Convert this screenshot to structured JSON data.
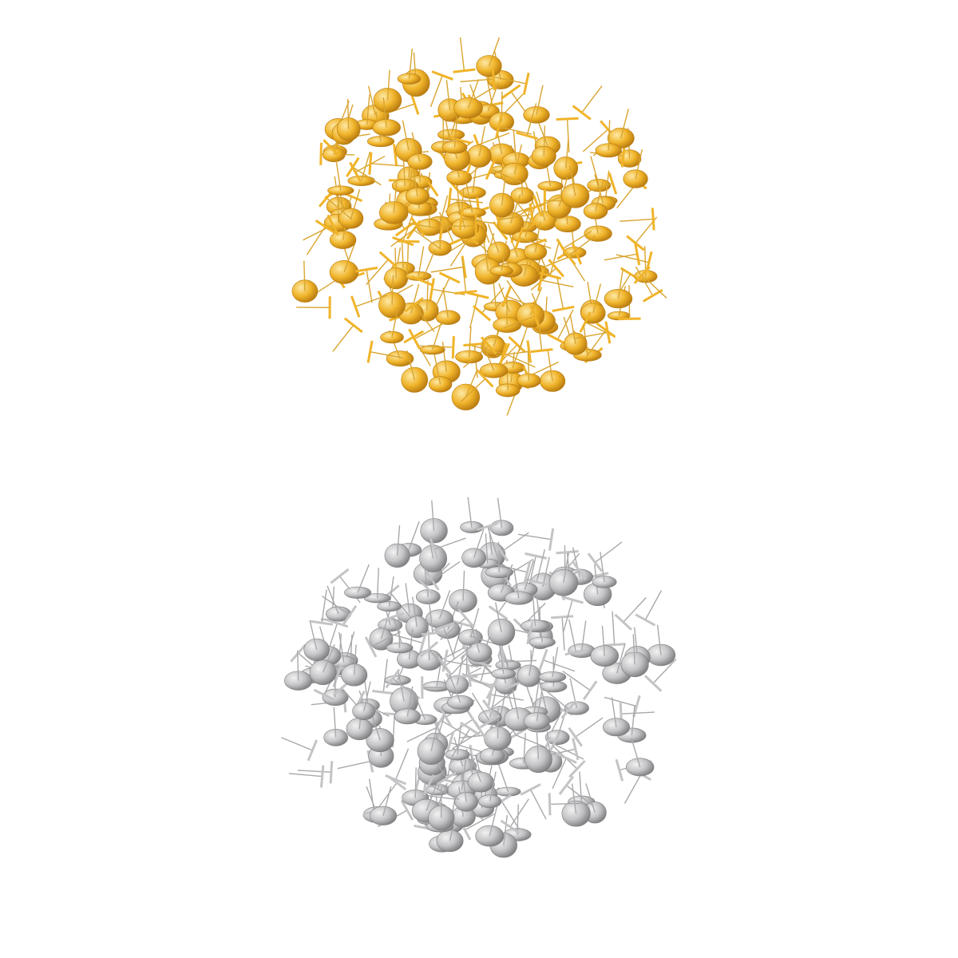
{
  "background": "#ffffff",
  "piles": [
    {
      "name": "gold-earring-posts",
      "disc_color": "#f0b42a",
      "disc_highlight": "#fde9a6",
      "disc_shadow": "#b77a10",
      "pin_color": "#d9a530"
    },
    {
      "name": "silver-earring-posts",
      "disc_color": "#c4c4c6",
      "disc_highlight": "#f2f2f3",
      "disc_shadow": "#7d7d80",
      "pin_color": "#a9a9ac"
    }
  ]
}
